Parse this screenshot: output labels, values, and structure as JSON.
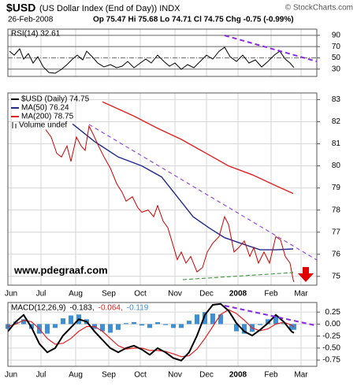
{
  "header": {
    "symbol": "$USD",
    "title": "(US Dollar Index (End of Day)) INDX",
    "copyright": "© StockCharts.com",
    "date": "26-Feb-2008",
    "quote": "Op 75.47  Hi 75.68  Lo 74.71  Cl 74.75  Chg -0.75 (-0.99%)"
  },
  "chart_data": [
    {
      "type": "line",
      "title": "RSI(14) 32.61",
      "color": "#000000",
      "x": [
        1,
        4,
        7.5,
        10,
        13,
        16,
        19,
        22.5,
        26,
        30,
        34,
        37.5,
        41,
        44,
        47.5,
        50,
        53.5,
        57,
        61,
        65,
        69,
        72.5,
        76,
        80,
        84,
        87.5,
        91,
        95,
        99,
        102.5,
        106,
        110,
        114,
        118,
        122,
        126,
        130,
        134,
        137.5,
        141,
        145,
        149,
        153,
        157,
        161,
        165,
        169,
        172.5,
        176,
        179,
        181.5
      ],
      "values": [
        61.8,
        54.8,
        66,
        47.8,
        57.6,
        40.8,
        52,
        33.8,
        24,
        22.6,
        29.6,
        38,
        47.8,
        54.8,
        46.4,
        61.8,
        52,
        40.8,
        33.8,
        38,
        32.4,
        35.2,
        43.6,
        32.4,
        40.8,
        47.8,
        40.8,
        54.8,
        43.6,
        35.2,
        40.8,
        29.6,
        38,
        32.4,
        43.6,
        54.8,
        47.8,
        61.8,
        68.8,
        52,
        43.6,
        54.8,
        40.8,
        46.4,
        33.8,
        43.6,
        54.8,
        61.8,
        47.8,
        40.8,
        32.61
      ],
      "xlim": [
        0,
        196
      ],
      "ylim": [
        17,
        101
      ],
      "yticks": [
        90,
        70,
        50,
        30
      ],
      "grid": true
    },
    {
      "type": "line",
      "annotation": "www.pdegraaf.com",
      "volume_label": "Volume undef",
      "series": [
        {
          "name": "$USD (Daily) 74.75",
          "color": "#cc0000",
          "x": [
            24,
            27.5,
            31,
            34,
            37.5,
            40,
            43.5,
            46.5,
            49,
            51.5,
            54,
            57.5,
            61,
            65,
            69,
            72.5,
            75,
            79,
            82.5,
            85,
            89,
            92.5,
            95,
            98.5,
            101.5,
            104,
            107.5,
            110,
            113,
            116,
            120,
            123.5,
            126.5,
            130,
            134,
            137.5,
            140,
            143.5,
            146.5,
            150,
            153.5,
            156,
            159,
            162.5,
            166,
            170,
            173,
            176,
            179,
            181,
            181.5
          ],
          "values": [
            81.64,
            81.3,
            80.57,
            80.4,
            80.9,
            80.2,
            81.3,
            80.9,
            80.7,
            81.8,
            81.45,
            80.9,
            80.4,
            79.9,
            79.2,
            78.8,
            78.4,
            78.6,
            78.1,
            77.9,
            78,
            77.7,
            78.2,
            77.5,
            77.2,
            76.6,
            75.75,
            76.1,
            75.6,
            75.9,
            75.2,
            75.4,
            76.1,
            76.5,
            76.8,
            77.7,
            77.35,
            76.1,
            76.3,
            76.6,
            75.9,
            76.3,
            75.6,
            76.1,
            75.6,
            76.8,
            76.65,
            75.9,
            75.6,
            74.85,
            74.75
          ]
        },
        {
          "name": "MA(50) 76.24",
          "color": "#1f2a8c",
          "x": [
            41,
            55,
            70,
            85,
            97.5,
            107.5,
            117.5,
            127.5,
            137.5,
            147.5,
            160,
            170,
            181
          ],
          "values": [
            81.9,
            81.1,
            80.4,
            80,
            79.5,
            78.6,
            77.7,
            77.2,
            76.75,
            76.5,
            76.2,
            76.2,
            76.24
          ]
        },
        {
          "name": "MA(200) 78.75",
          "color": "#e02020",
          "x": [
            60,
            80,
            95,
            110,
            125,
            140,
            155,
            170,
            181
          ],
          "values": [
            82.9,
            82.25,
            81.7,
            81.2,
            80.6,
            80,
            79.6,
            79.1,
            78.75
          ]
        }
      ],
      "xlim": [
        0,
        196
      ],
      "ylim": [
        74.6,
        83.3
      ],
      "yticks": [
        83,
        82,
        81,
        80,
        79,
        78,
        77,
        76,
        75
      ],
      "xticks": [
        {
          "value": 2,
          "label": "Jun"
        },
        {
          "value": 21,
          "label": "Jul"
        },
        {
          "value": 43,
          "label": "Aug"
        },
        {
          "value": 64,
          "label": "Sep"
        },
        {
          "value": 84,
          "label": "Oct"
        },
        {
          "value": 106,
          "label": "Nov"
        },
        {
          "value": 126,
          "label": "Dec"
        },
        {
          "value": 146,
          "label": "2008"
        },
        {
          "value": 167,
          "label": "Feb"
        },
        {
          "value": 186,
          "label": "Mar"
        }
      ],
      "grid": true
    },
    {
      "type": "macd",
      "title": "MACD(12,26,9)",
      "x": [
        0,
        5,
        10,
        15,
        20,
        25,
        30,
        35,
        40,
        45,
        50,
        55,
        60,
        65,
        70,
        75,
        80,
        85,
        90,
        95,
        100,
        105,
        110,
        115,
        120,
        125,
        130,
        135,
        140,
        145,
        150,
        155,
        160,
        165,
        170,
        175,
        180,
        181.5
      ],
      "series": [
        {
          "label": "-0.183,",
          "color": "#000000",
          "values": [
            -0.155,
            0.05,
            0.19,
            -0.07,
            -0.41,
            -0.59,
            -0.5,
            -0.24,
            -0.07,
            0.1,
            0.05,
            -0.155,
            -0.33,
            -0.5,
            -0.59,
            -0.5,
            -0.45,
            -0.53,
            -0.64,
            -0.5,
            -0.59,
            -0.71,
            -0.76,
            -0.59,
            -0.24,
            0.19,
            0.4,
            0.42,
            0.28,
            0.02,
            -0.155,
            -0.24,
            -0.12,
            0.02,
            0.19,
            0.05,
            -0.155,
            -0.183
          ]
        },
        {
          "label": "-0.064,",
          "color": "#e02020",
          "values": [
            -0.05,
            0,
            0.08,
            0.05,
            -0.1,
            -0.3,
            -0.42,
            -0.4,
            -0.3,
            -0.15,
            -0.05,
            -0.05,
            -0.15,
            -0.3,
            -0.45,
            -0.52,
            -0.5,
            -0.5,
            -0.55,
            -0.55,
            -0.57,
            -0.62,
            -0.68,
            -0.66,
            -0.52,
            -0.3,
            -0.05,
            0.2,
            0.3,
            0.22,
            0.08,
            -0.08,
            -0.14,
            -0.1,
            0,
            0.04,
            -0.02,
            -0.064
          ]
        }
      ],
      "histogram": {
        "label": "-0.119",
        "color": "#3d8fd6",
        "values": [
          -0.1,
          0.05,
          0.1,
          -0.1,
          -0.2,
          -0.2,
          -0.08,
          0.12,
          0.18,
          0.2,
          0.1,
          -0.1,
          -0.15,
          -0.18,
          -0.12,
          0.02,
          0.04,
          -0.03,
          -0.08,
          0.04,
          -0.02,
          -0.08,
          -0.08,
          0.07,
          0.2,
          0.25,
          0.22,
          0.2,
          0,
          -0.15,
          -0.2,
          -0.16,
          -0.02,
          0.1,
          0.18,
          0.02,
          -0.12,
          -0.119
        ]
      },
      "xlim": [
        0,
        196
      ],
      "ylim": [
        -0.88,
        0.45
      ],
      "yticks": [
        0.25,
        {
          "value": 0,
          "label": "0.00"
        },
        -0.25,
        {
          "value": -0.5,
          "label": "-0.50"
        },
        -0.75
      ],
      "xticks": [
        {
          "value": 2,
          "label": "Jun"
        },
        {
          "value": 21,
          "label": "Jul"
        },
        {
          "value": 43,
          "label": "Aug"
        },
        {
          "value": 64,
          "label": "Sep"
        },
        {
          "value": 84,
          "label": "Oct"
        },
        {
          "value": 106,
          "label": "Nov"
        },
        {
          "value": 126,
          "label": "Dec"
        },
        {
          "value": 146,
          "label": "2008"
        },
        {
          "value": 167,
          "label": "Feb"
        },
        {
          "value": 186,
          "label": "Mar"
        }
      ],
      "grid": true
    }
  ]
}
